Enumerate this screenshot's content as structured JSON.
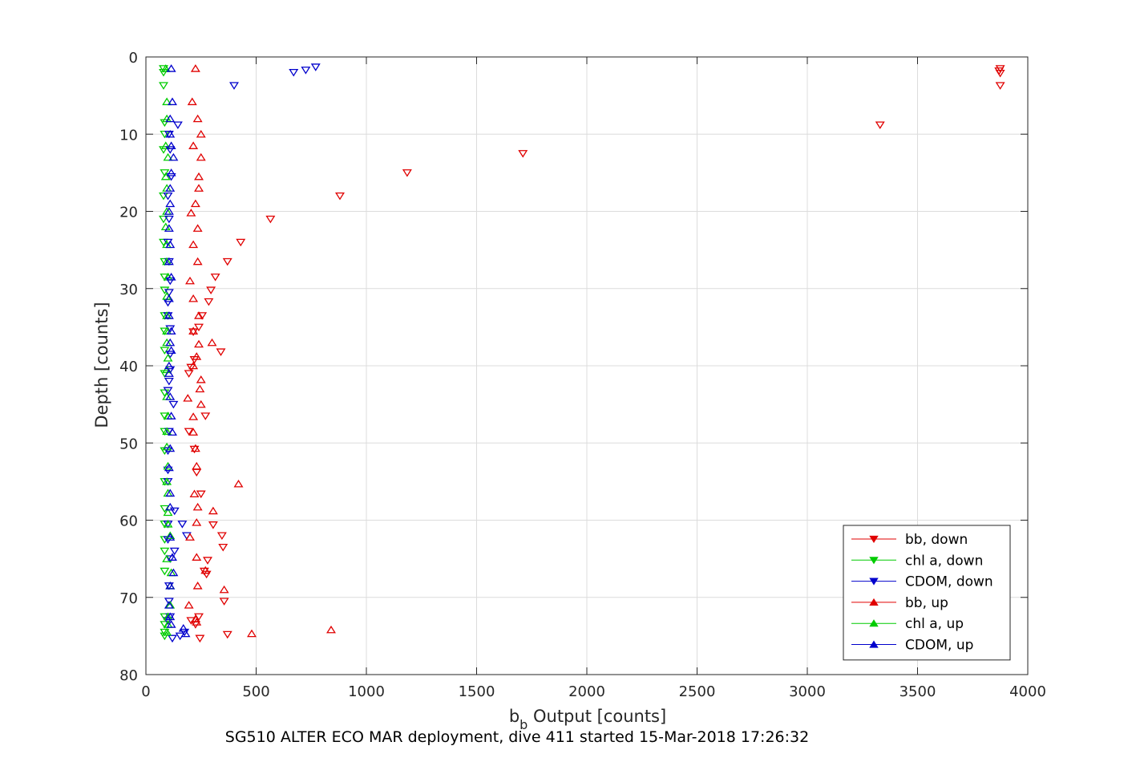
{
  "chart_data": {
    "type": "scatter",
    "title": "",
    "xlabel": {
      "main": "b",
      "sub": "b",
      "rest": " Output [counts]"
    },
    "ylabel": "Depth [counts]",
    "caption": "SG510 ALTER ECO MAR deployment, dive 411 started 15-Mar-2018 17:26:32",
    "xlim": [
      0,
      4000
    ],
    "ylim": [
      0,
      80
    ],
    "y_reversed": true,
    "xticks": [
      "0",
      "500",
      "1000",
      "1500",
      "2000",
      "2500",
      "3000",
      "3500",
      "4000"
    ],
    "yticks": [
      "0",
      "10",
      "20",
      "30",
      "40",
      "50",
      "60",
      "70",
      "80"
    ],
    "grid": true,
    "legend_position": "bottom-right",
    "series": [
      {
        "name": "bb, down",
        "color": "#e00000",
        "marker": "triangle-down",
        "points": [
          [
            3875,
            1.5
          ],
          [
            3870,
            1.8
          ],
          [
            3875,
            2.1
          ],
          [
            3875,
            3.7
          ],
          [
            3330,
            8.8
          ],
          [
            1710,
            12.5
          ],
          [
            1185,
            15.0
          ],
          [
            880,
            18.0
          ],
          [
            565,
            21.0
          ],
          [
            430,
            24.0
          ],
          [
            370,
            26.5
          ],
          [
            315,
            28.5
          ],
          [
            295,
            30.2
          ],
          [
            285,
            31.7
          ],
          [
            255,
            33.5
          ],
          [
            215,
            35.6
          ],
          [
            240,
            35.0
          ],
          [
            340,
            38.2
          ],
          [
            220,
            39.2
          ],
          [
            205,
            40.2
          ],
          [
            195,
            41.0
          ],
          [
            270,
            46.5
          ],
          [
            195,
            48.5
          ],
          [
            220,
            50.8
          ],
          [
            230,
            53.8
          ],
          [
            250,
            56.6
          ],
          [
            305,
            60.6
          ],
          [
            345,
            62.0
          ],
          [
            350,
            63.5
          ],
          [
            280,
            65.2
          ],
          [
            265,
            66.6
          ],
          [
            275,
            67.0
          ],
          [
            355,
            70.5
          ],
          [
            240,
            72.5
          ],
          [
            205,
            73.0
          ],
          [
            225,
            73.5
          ],
          [
            245,
            75.3
          ],
          [
            370,
            74.8
          ]
        ]
      },
      {
        "name": "chl a, down",
        "color": "#00cc00",
        "marker": "triangle-down",
        "points": [
          [
            80,
            1.5
          ],
          [
            80,
            2.0
          ],
          [
            80,
            3.7
          ],
          [
            85,
            8.5
          ],
          [
            85,
            10.0
          ],
          [
            80,
            12.0
          ],
          [
            85,
            15.0
          ],
          [
            80,
            18.0
          ],
          [
            80,
            21.0
          ],
          [
            80,
            24.0
          ],
          [
            85,
            26.5
          ],
          [
            85,
            28.5
          ],
          [
            85,
            30.2
          ],
          [
            85,
            33.5
          ],
          [
            85,
            35.5
          ],
          [
            85,
            38.0
          ],
          [
            85,
            41.0
          ],
          [
            85,
            43.5
          ],
          [
            85,
            46.5
          ],
          [
            85,
            48.5
          ],
          [
            85,
            51.0
          ],
          [
            85,
            55.0
          ],
          [
            85,
            58.5
          ],
          [
            85,
            60.5
          ],
          [
            85,
            62.5
          ],
          [
            85,
            64.0
          ],
          [
            85,
            66.6
          ],
          [
            85,
            72.5
          ],
          [
            85,
            73.5
          ],
          [
            85,
            74.5
          ],
          [
            85,
            75.0
          ]
        ]
      },
      {
        "name": "CDOM, down",
        "color": "#0000cc",
        "marker": "triangle-down",
        "points": [
          [
            770,
            1.3
          ],
          [
            725,
            1.7
          ],
          [
            670,
            2.0
          ],
          [
            400,
            3.7
          ],
          [
            145,
            8.8
          ],
          [
            105,
            10.0
          ],
          [
            110,
            12.0
          ],
          [
            115,
            15.5
          ],
          [
            100,
            18.0
          ],
          [
            105,
            21.0
          ],
          [
            100,
            24.0
          ],
          [
            105,
            26.5
          ],
          [
            110,
            29.0
          ],
          [
            105,
            30.5
          ],
          [
            100,
            31.8
          ],
          [
            100,
            33.5
          ],
          [
            110,
            35.2
          ],
          [
            110,
            38.5
          ],
          [
            110,
            40.5
          ],
          [
            105,
            42.0
          ],
          [
            100,
            43.2
          ],
          [
            125,
            45.0
          ],
          [
            105,
            48.5
          ],
          [
            100,
            51.0
          ],
          [
            100,
            53.5
          ],
          [
            100,
            55.0
          ],
          [
            130,
            58.8
          ],
          [
            100,
            60.5
          ],
          [
            165,
            60.5
          ],
          [
            185,
            62.0
          ],
          [
            100,
            62.5
          ],
          [
            130,
            64.0
          ],
          [
            110,
            65.0
          ],
          [
            105,
            68.5
          ],
          [
            105,
            70.5
          ],
          [
            110,
            72.5
          ],
          [
            100,
            73.0
          ],
          [
            175,
            74.5
          ],
          [
            155,
            75.0
          ],
          [
            120,
            75.3
          ]
        ]
      },
      {
        "name": "bb, up",
        "color": "#e00000",
        "marker": "triangle-up",
        "points": [
          [
            225,
            1.5
          ],
          [
            210,
            5.8
          ],
          [
            235,
            8.0
          ],
          [
            250,
            10.0
          ],
          [
            215,
            11.5
          ],
          [
            250,
            13.0
          ],
          [
            240,
            15.5
          ],
          [
            240,
            17.0
          ],
          [
            225,
            19.0
          ],
          [
            205,
            20.2
          ],
          [
            235,
            22.2
          ],
          [
            215,
            24.3
          ],
          [
            235,
            26.5
          ],
          [
            200,
            29.0
          ],
          [
            215,
            31.3
          ],
          [
            240,
            33.5
          ],
          [
            215,
            35.5
          ],
          [
            300,
            37.0
          ],
          [
            240,
            37.2
          ],
          [
            230,
            38.8
          ],
          [
            215,
            40.0
          ],
          [
            250,
            41.8
          ],
          [
            245,
            43.0
          ],
          [
            190,
            44.2
          ],
          [
            250,
            45.0
          ],
          [
            215,
            46.6
          ],
          [
            215,
            48.6
          ],
          [
            225,
            50.7
          ],
          [
            230,
            53.0
          ],
          [
            420,
            55.3
          ],
          [
            220,
            56.6
          ],
          [
            235,
            58.3
          ],
          [
            305,
            58.8
          ],
          [
            230,
            60.3
          ],
          [
            200,
            62.2
          ],
          [
            230,
            64.8
          ],
          [
            270,
            66.5
          ],
          [
            235,
            68.5
          ],
          [
            355,
            69.0
          ],
          [
            195,
            71.0
          ],
          [
            225,
            72.8
          ],
          [
            230,
            73.2
          ],
          [
            840,
            74.2
          ],
          [
            480,
            74.7
          ]
        ]
      },
      {
        "name": "chl a, up",
        "color": "#00cc00",
        "marker": "triangle-up",
        "points": [
          [
            90,
            1.5
          ],
          [
            95,
            5.8
          ],
          [
            95,
            8.0
          ],
          [
            90,
            11.5
          ],
          [
            100,
            13.0
          ],
          [
            90,
            15.5
          ],
          [
            95,
            17.0
          ],
          [
            95,
            20.0
          ],
          [
            90,
            22.0
          ],
          [
            95,
            24.3
          ],
          [
            95,
            26.5
          ],
          [
            100,
            28.5
          ],
          [
            95,
            31.0
          ],
          [
            95,
            33.5
          ],
          [
            95,
            35.5
          ],
          [
            95,
            37.0
          ],
          [
            100,
            39.0
          ],
          [
            95,
            40.5
          ],
          [
            95,
            44.0
          ],
          [
            100,
            46.5
          ],
          [
            95,
            48.5
          ],
          [
            95,
            50.5
          ],
          [
            100,
            53.0
          ],
          [
            95,
            55.0
          ],
          [
            100,
            56.5
          ],
          [
            100,
            59.0
          ],
          [
            100,
            60.5
          ],
          [
            110,
            62.0
          ],
          [
            95,
            65.0
          ],
          [
            115,
            66.8
          ],
          [
            110,
            68.5
          ],
          [
            110,
            71.0
          ],
          [
            100,
            72.5
          ],
          [
            100,
            73.5
          ],
          [
            95,
            74.5
          ]
        ]
      },
      {
        "name": "CDOM, up",
        "color": "#0000cc",
        "marker": "triangle-up",
        "points": [
          [
            115,
            1.5
          ],
          [
            120,
            5.8
          ],
          [
            110,
            8.0
          ],
          [
            110,
            10.0
          ],
          [
            115,
            11.5
          ],
          [
            125,
            13.0
          ],
          [
            115,
            15.0
          ],
          [
            110,
            17.0
          ],
          [
            110,
            19.0
          ],
          [
            105,
            20.0
          ],
          [
            105,
            22.2
          ],
          [
            110,
            24.3
          ],
          [
            105,
            26.5
          ],
          [
            115,
            28.5
          ],
          [
            105,
            31.3
          ],
          [
            105,
            33.5
          ],
          [
            115,
            35.5
          ],
          [
            110,
            37.0
          ],
          [
            115,
            38.0
          ],
          [
            105,
            40.0
          ],
          [
            105,
            41.0
          ],
          [
            110,
            44.0
          ],
          [
            115,
            46.5
          ],
          [
            120,
            48.6
          ],
          [
            110,
            50.7
          ],
          [
            105,
            53.2
          ],
          [
            110,
            56.5
          ],
          [
            110,
            58.3
          ],
          [
            110,
            62.2
          ],
          [
            120,
            64.8
          ],
          [
            125,
            66.8
          ],
          [
            110,
            68.5
          ],
          [
            105,
            71.0
          ],
          [
            110,
            72.5
          ],
          [
            115,
            73.5
          ],
          [
            170,
            74.0
          ],
          [
            180,
            74.7
          ]
        ]
      }
    ]
  }
}
